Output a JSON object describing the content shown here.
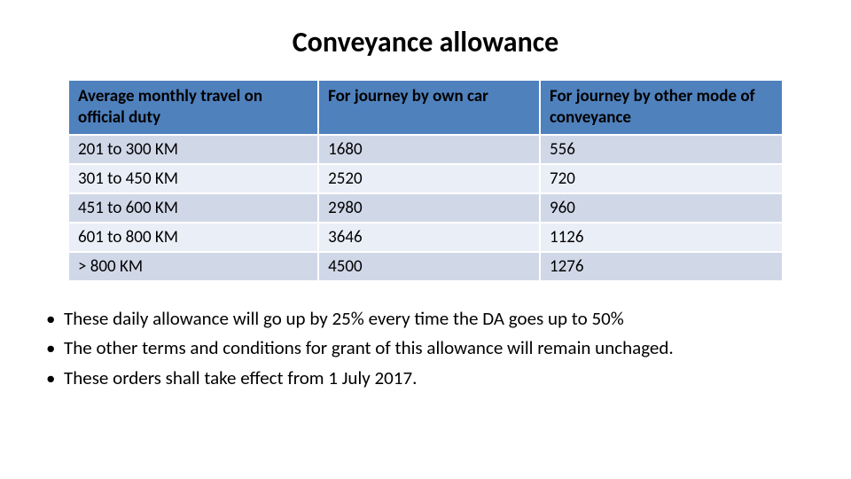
{
  "title": "Conveyance allowance",
  "table": {
    "columns": [
      "Average monthly travel on official duty",
      "For journey by own car",
      "For journey by other mode of conveyance"
    ],
    "rows": [
      [
        "201 to 300 KM",
        "1680",
        "556"
      ],
      [
        "301 to 450 KM",
        "2520",
        "720"
      ],
      [
        "451 to 600 KM",
        "2980",
        "960"
      ],
      [
        "601 to 800 KM",
        "3646",
        "1126"
      ],
      [
        "> 800 KM",
        "4500",
        "1276"
      ]
    ],
    "header_bg": "#4f81bd",
    "row_odd_bg": "#d0d8e8",
    "row_even_bg": "#eaeef7",
    "border_color": "#ffffff",
    "font_size": 19,
    "header_font_weight": "bold",
    "col_widths_pct": [
      35,
      31,
      34
    ]
  },
  "bullets": [
    "These daily allowance will go up by 25% every time the DA goes up to 50%",
    "The other terms and conditions for grant of this allowance will remain unchaged.",
    "These orders shall take effect from 1 July 2017."
  ],
  "colors": {
    "background": "#ffffff",
    "text": "#000000"
  },
  "typography": {
    "title_fontsize": 32,
    "body_fontsize": 21,
    "font_family": "Calibri"
  }
}
